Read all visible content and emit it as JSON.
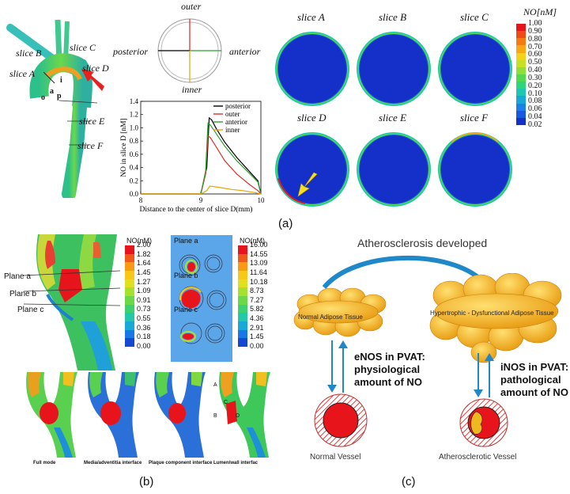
{
  "panel_a": {
    "label": "(a)",
    "vessel_labels": {
      "slice_b": "slice B",
      "slice_a": "slice A",
      "slice_c": "slice C",
      "slice_d": "slice D",
      "slice_e": "slice E",
      "slice_f": "slice F",
      "o": "o",
      "a": "a",
      "i": "i",
      "p": "p"
    },
    "compass": {
      "top": "outer",
      "bottom": "inner",
      "left": "posterior",
      "right": "anterior"
    },
    "chart_data": {
      "type": "line",
      "xlabel": "Distance to the center of slice D(mm)",
      "ylabel": "NO in slice D [nM]",
      "xlim": [
        8,
        10
      ],
      "ylim": [
        0,
        1.4
      ],
      "xticks": [
        "8",
        "9",
        "10"
      ],
      "yticks": [
        "0.0",
        "0.2",
        "0.4",
        "0.6",
        "0.8",
        "1.0",
        "1.2",
        "1.4"
      ],
      "legend_position": "top-right",
      "series": [
        {
          "name": "posterior",
          "color": "#000000",
          "x": [
            8.0,
            9.0,
            9.1,
            9.14,
            9.18,
            9.25,
            9.4,
            9.6,
            9.8,
            9.95,
            10.0
          ],
          "y": [
            0.0,
            0.0,
            0.4,
            1.15,
            1.12,
            1.0,
            0.78,
            0.55,
            0.35,
            0.2,
            0.0
          ]
        },
        {
          "name": "outer",
          "color": "#e0302a",
          "x": [
            8.0,
            9.0,
            9.08,
            9.12,
            9.16,
            9.25,
            9.4,
            9.6,
            9.8,
            9.95,
            10.0
          ],
          "y": [
            0.0,
            0.0,
            0.3,
            0.88,
            0.85,
            0.72,
            0.5,
            0.3,
            0.15,
            0.05,
            0.0
          ]
        },
        {
          "name": "anterior",
          "color": "#2ca02c",
          "x": [
            8.0,
            9.0,
            9.08,
            9.12,
            9.16,
            9.25,
            9.4,
            9.6,
            9.8,
            9.95,
            10.0
          ],
          "y": [
            0.0,
            0.0,
            0.35,
            1.07,
            1.04,
            0.92,
            0.72,
            0.5,
            0.32,
            0.18,
            0.0
          ]
        },
        {
          "name": "inner",
          "color": "#e8a400",
          "x": [
            8.0,
            9.0,
            9.1,
            9.15,
            9.3,
            9.5,
            9.7,
            9.9,
            10.0
          ],
          "y": [
            0.0,
            0.0,
            0.05,
            0.12,
            0.1,
            0.07,
            0.05,
            0.02,
            0.0
          ]
        }
      ]
    },
    "slices": [
      {
        "title": "slice A"
      },
      {
        "title": "slice B"
      },
      {
        "title": "slice C"
      },
      {
        "title": "slice D"
      },
      {
        "title": "slice E"
      },
      {
        "title": "slice F"
      }
    ],
    "colorbar": {
      "title": "NO[nM]",
      "ticks": [
        "1.00",
        "0.90",
        "0.80",
        "0.70",
        "0.60",
        "0.50",
        "0.40",
        "0.30",
        "0.20",
        "0.10",
        "0.08",
        "0.06",
        "0.04",
        "0.02"
      ],
      "colors": [
        "#e8141c",
        "#f04a18",
        "#f47a14",
        "#f8a812",
        "#f2d21a",
        "#c8e024",
        "#8ee038",
        "#54d850",
        "#2ed67a",
        "#1ec8b0",
        "#18a8d8",
        "#1880e8",
        "#1858e0",
        "#1430c8"
      ]
    }
  },
  "panel_b": {
    "label": "(b)",
    "plane_labels": {
      "a": "Plane a",
      "b": "Plane b",
      "c": "Plane c"
    },
    "colorbar_left": {
      "title": "NO(nM)",
      "ticks": [
        "2.00",
        "1.82",
        "1.64",
        "1.45",
        "1.27",
        "1.09",
        "0.91",
        "0.73",
        "0.55",
        "0.36",
        "0.18",
        "0.00"
      ]
    },
    "colorbar_right": {
      "title": "NO(nM)",
      "ticks": [
        "16.00",
        "14.55",
        "13.09",
        "11.64",
        "10.18",
        "8.73",
        "7.27",
        "5.82",
        "4.36",
        "2.91",
        "1.45",
        "0.00"
      ]
    },
    "colorbar_colors": [
      "#e8141c",
      "#f05a18",
      "#f89a14",
      "#f8c818",
      "#e0e020",
      "#a8e030",
      "#6ad848",
      "#3cd070",
      "#22c8a8",
      "#1aa8d8",
      "#1878e8",
      "#1448d0"
    ],
    "inset_planes": {
      "a": "Plane a",
      "b": "Plane b",
      "c": "Plane c"
    },
    "bottom_captions": [
      "Full mode",
      "Media/adventitia interface",
      "Plaque component interface",
      "Lumen/wall interfac"
    ],
    "point_labels": {
      "a": "A",
      "b": "B",
      "c": "C",
      "d": "D"
    }
  },
  "panel_c": {
    "label": "(c)",
    "title": "Atherosclerosis developed",
    "left_tissue": "Normal Adipose Tissue",
    "right_tissue": "Hypertrophic - Dysfunctional Adipose Tissue",
    "enos_text": [
      "eNOS in PVAT:",
      "physiological",
      "amount of NO"
    ],
    "inos_text": [
      "iNOS in PVAT:",
      "pathological",
      "amount of NO"
    ],
    "normal_vessel": "Normal Vessel",
    "athero_vessel": "Atherosclerotic Vessel",
    "enos_color": "#2ab04a",
    "inos_color": "#e82020"
  }
}
